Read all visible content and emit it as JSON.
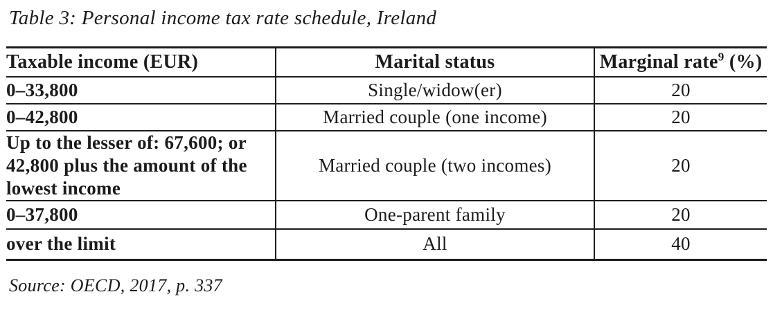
{
  "title": "Table 3: Personal income tax rate schedule, Ireland",
  "table": {
    "columns": [
      {
        "label": "Taxable income (EUR)"
      },
      {
        "label": "Marital status"
      },
      {
        "label": "Marginal rate",
        "footnote": "9",
        "unit": " (%)"
      }
    ],
    "rows": [
      {
        "income_lines": [
          "0–33,800"
        ],
        "status": "Single/widow(er)",
        "rate": "20"
      },
      {
        "income_lines": [
          "0–42,800"
        ],
        "status": "Married couple (one income)",
        "rate": "20"
      },
      {
        "income_lines": [
          "Up to the lesser of: 67,600; or",
          "42,800 plus the amount of the",
          "lowest income"
        ],
        "status": "Married couple (two incomes)",
        "rate": "20"
      },
      {
        "income_lines": [
          "0–37,800"
        ],
        "status": "One-parent family",
        "rate": "20"
      },
      {
        "income_lines": [
          "over the limit"
        ],
        "status": "All",
        "rate": "40"
      }
    ]
  },
  "source": "Source: OECD, 2017, p. 337",
  "colors": {
    "text": "#1b1b1b",
    "border": "#1c1c1c",
    "background": "#ffffff"
  }
}
